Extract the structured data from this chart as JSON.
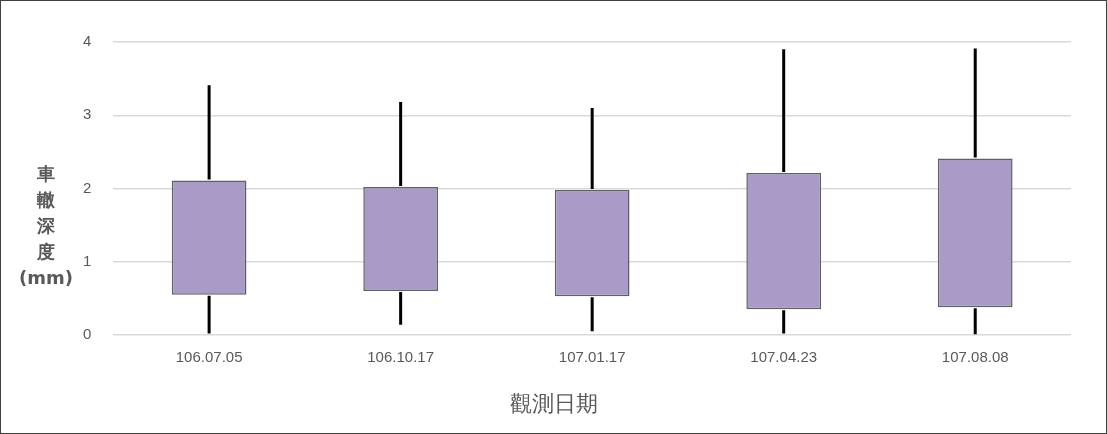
{
  "chart_data": {
    "type": "bar",
    "xlabel": "觀測日期",
    "ylabel": "車轍深度(mm)",
    "categories": [
      "106.07.05",
      "106.10.17",
      "107.01.17",
      "107.04.23",
      "107.08.08"
    ],
    "base": [
      0.55,
      0.6,
      0.53,
      0.35,
      0.38
    ],
    "values": [
      1.56,
      1.42,
      1.45,
      1.86,
      2.03
    ],
    "errors": [
      [
        0.02,
        3.41
      ],
      [
        0.14,
        3.18
      ],
      [
        0.05,
        3.1
      ],
      [
        0.02,
        3.9
      ],
      [
        0.01,
        3.91
      ]
    ],
    "color": "#a99ac8",
    "ylim": [
      0,
      4
    ],
    "yticks": [
      0,
      1,
      2,
      3,
      4
    ],
    "grid": "y"
  }
}
